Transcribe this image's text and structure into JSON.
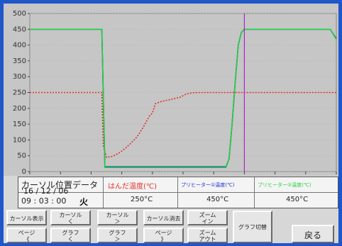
{
  "colors": {
    "frame": "#1f56c8",
    "plot_bg": "#c6c6c6",
    "solder": "#e0302a",
    "preheater1": "#1e2fd0",
    "preheater2": "#22d13c",
    "cursor": "#b024c8"
  },
  "chart_data": {
    "type": "line",
    "ylim": [
      0,
      500
    ],
    "y_ticks": [
      "500",
      "450",
      "400",
      "350",
      "300",
      "250",
      "200",
      "150",
      "100",
      "50",
      "0"
    ],
    "xlim": [
      0,
      100
    ],
    "grid": true,
    "cursor_x": 70,
    "series": [
      {
        "name": "はんだ温度(℃)",
        "color": "#e0302a",
        "points": [
          [
            0,
            250
          ],
          [
            23.5,
            250
          ],
          [
            24,
            80
          ],
          [
            25,
            45
          ],
          [
            27,
            48
          ],
          [
            29,
            58
          ],
          [
            31,
            72
          ],
          [
            33,
            90
          ],
          [
            35,
            110
          ],
          [
            37,
            140
          ],
          [
            39,
            175
          ],
          [
            40,
            185
          ],
          [
            41,
            215
          ],
          [
            43,
            222
          ],
          [
            46,
            228
          ],
          [
            49,
            235
          ],
          [
            51,
            245
          ],
          [
            53,
            249
          ],
          [
            55,
            250
          ],
          [
            70,
            250
          ],
          [
            100,
            250
          ]
        ]
      },
      {
        "name": "プリヒーター①温度(℃)",
        "color": "#1e2fd0",
        "points": [
          [
            0,
            450
          ],
          [
            23.5,
            450
          ],
          [
            24.5,
            15
          ],
          [
            64,
            15
          ],
          [
            65,
            40
          ],
          [
            66,
            150
          ],
          [
            67,
            280
          ],
          [
            68,
            400
          ],
          [
            69,
            440
          ],
          [
            70,
            450
          ],
          [
            98,
            450
          ],
          [
            100,
            420
          ]
        ]
      },
      {
        "name": "プリヒーター②温度(℃)",
        "color": "#22d13c",
        "points": [
          [
            0,
            450
          ],
          [
            23.5,
            450
          ],
          [
            24.5,
            13
          ],
          [
            64,
            13
          ],
          [
            65,
            40
          ],
          [
            66,
            150
          ],
          [
            67,
            280
          ],
          [
            68,
            400
          ],
          [
            69,
            440
          ],
          [
            70,
            450
          ],
          [
            98,
            450
          ],
          [
            100,
            418
          ]
        ]
      }
    ]
  },
  "cursor_panel": {
    "title": "カーソル位置データ",
    "date": "'16 / 12 / 06",
    "time": "09 : 03 : 00",
    "weekday": "火",
    "columns": [
      {
        "label": "はんだ温度(℃)",
        "value": "250°C"
      },
      {
        "label": "プリヒーター①温度(℃)",
        "value": "450°C"
      },
      {
        "label": "プリヒーター②温度(℃)",
        "value": "450°C"
      }
    ]
  },
  "buttons": {
    "cursor_show": "カーソル表示",
    "cursor_left": [
      "カーソル",
      "く"
    ],
    "cursor_right": [
      "カーソル",
      "＞"
    ],
    "cursor_clear": "カーソル消去",
    "zoom_in": [
      "ズーム",
      "イン"
    ],
    "page_prev": [
      "ページ",
      "《"
    ],
    "graph_left": [
      "グラフ",
      "く"
    ],
    "graph_right": [
      "グラフ",
      "＞"
    ],
    "page_next": [
      "ページ",
      "》"
    ],
    "zoom_out": [
      "ズーム",
      "アウト"
    ],
    "graph_switch": "グラフ切替",
    "back": "戻る"
  }
}
